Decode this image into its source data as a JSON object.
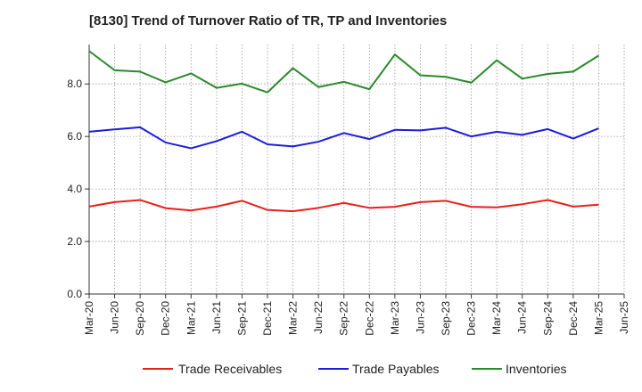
{
  "chart_data": {
    "type": "line",
    "title": "[8130]  Trend of Turnover Ratio of TR, TP and Inventories",
    "xlabel": "",
    "ylabel": "",
    "ylim": [
      0,
      9.5
    ],
    "yticks": [
      "0.0",
      "2.0",
      "4.0",
      "6.0",
      "8.0"
    ],
    "x_tick_labels": [
      "Mar-20",
      "Jun-20",
      "Sep-20",
      "Dec-20",
      "Mar-21",
      "Jun-21",
      "Sep-21",
      "Dec-21",
      "Mar-22",
      "Jun-22",
      "Sep-22",
      "Dec-22",
      "Mar-23",
      "Jun-23",
      "Sep-23",
      "Dec-23",
      "Mar-24",
      "Jun-24",
      "Sep-24",
      "Dec-24",
      "Mar-25",
      "Jun-25"
    ],
    "categories": [
      "Mar-20",
      "Jun-20",
      "Sep-20",
      "Dec-20",
      "Mar-21",
      "Jun-21",
      "Sep-21",
      "Dec-21",
      "Mar-22",
      "Jun-22",
      "Sep-22",
      "Dec-22",
      "Mar-23",
      "Jun-23",
      "Sep-23",
      "Dec-23",
      "Mar-24",
      "Jun-24",
      "Sep-24",
      "Dec-24",
      "Mar-25"
    ],
    "grid": true,
    "legend_position": "bottom",
    "series": [
      {
        "name": "Trade Receivables",
        "color": "#e8201c",
        "values": [
          3.33,
          3.5,
          3.58,
          3.27,
          3.18,
          3.33,
          3.55,
          3.2,
          3.15,
          3.28,
          3.47,
          3.28,
          3.32,
          3.5,
          3.55,
          3.32,
          3.3,
          3.42,
          3.58,
          3.33,
          3.4
        ]
      },
      {
        "name": "Trade Payables",
        "color": "#1c1cd8",
        "values": [
          6.18,
          6.27,
          6.35,
          5.77,
          5.55,
          5.82,
          6.18,
          5.7,
          5.62,
          5.8,
          6.13,
          5.9,
          6.25,
          6.23,
          6.33,
          6.0,
          6.18,
          6.06,
          6.28,
          5.92,
          6.31
        ]
      },
      {
        "name": "Inventories",
        "color": "#2a8a2a",
        "values": [
          9.25,
          8.52,
          8.47,
          8.06,
          8.4,
          7.85,
          8.01,
          7.68,
          8.6,
          7.88,
          8.08,
          7.8,
          9.12,
          8.33,
          8.27,
          8.05,
          8.9,
          8.2,
          8.38,
          8.47,
          9.08
        ]
      }
    ]
  }
}
